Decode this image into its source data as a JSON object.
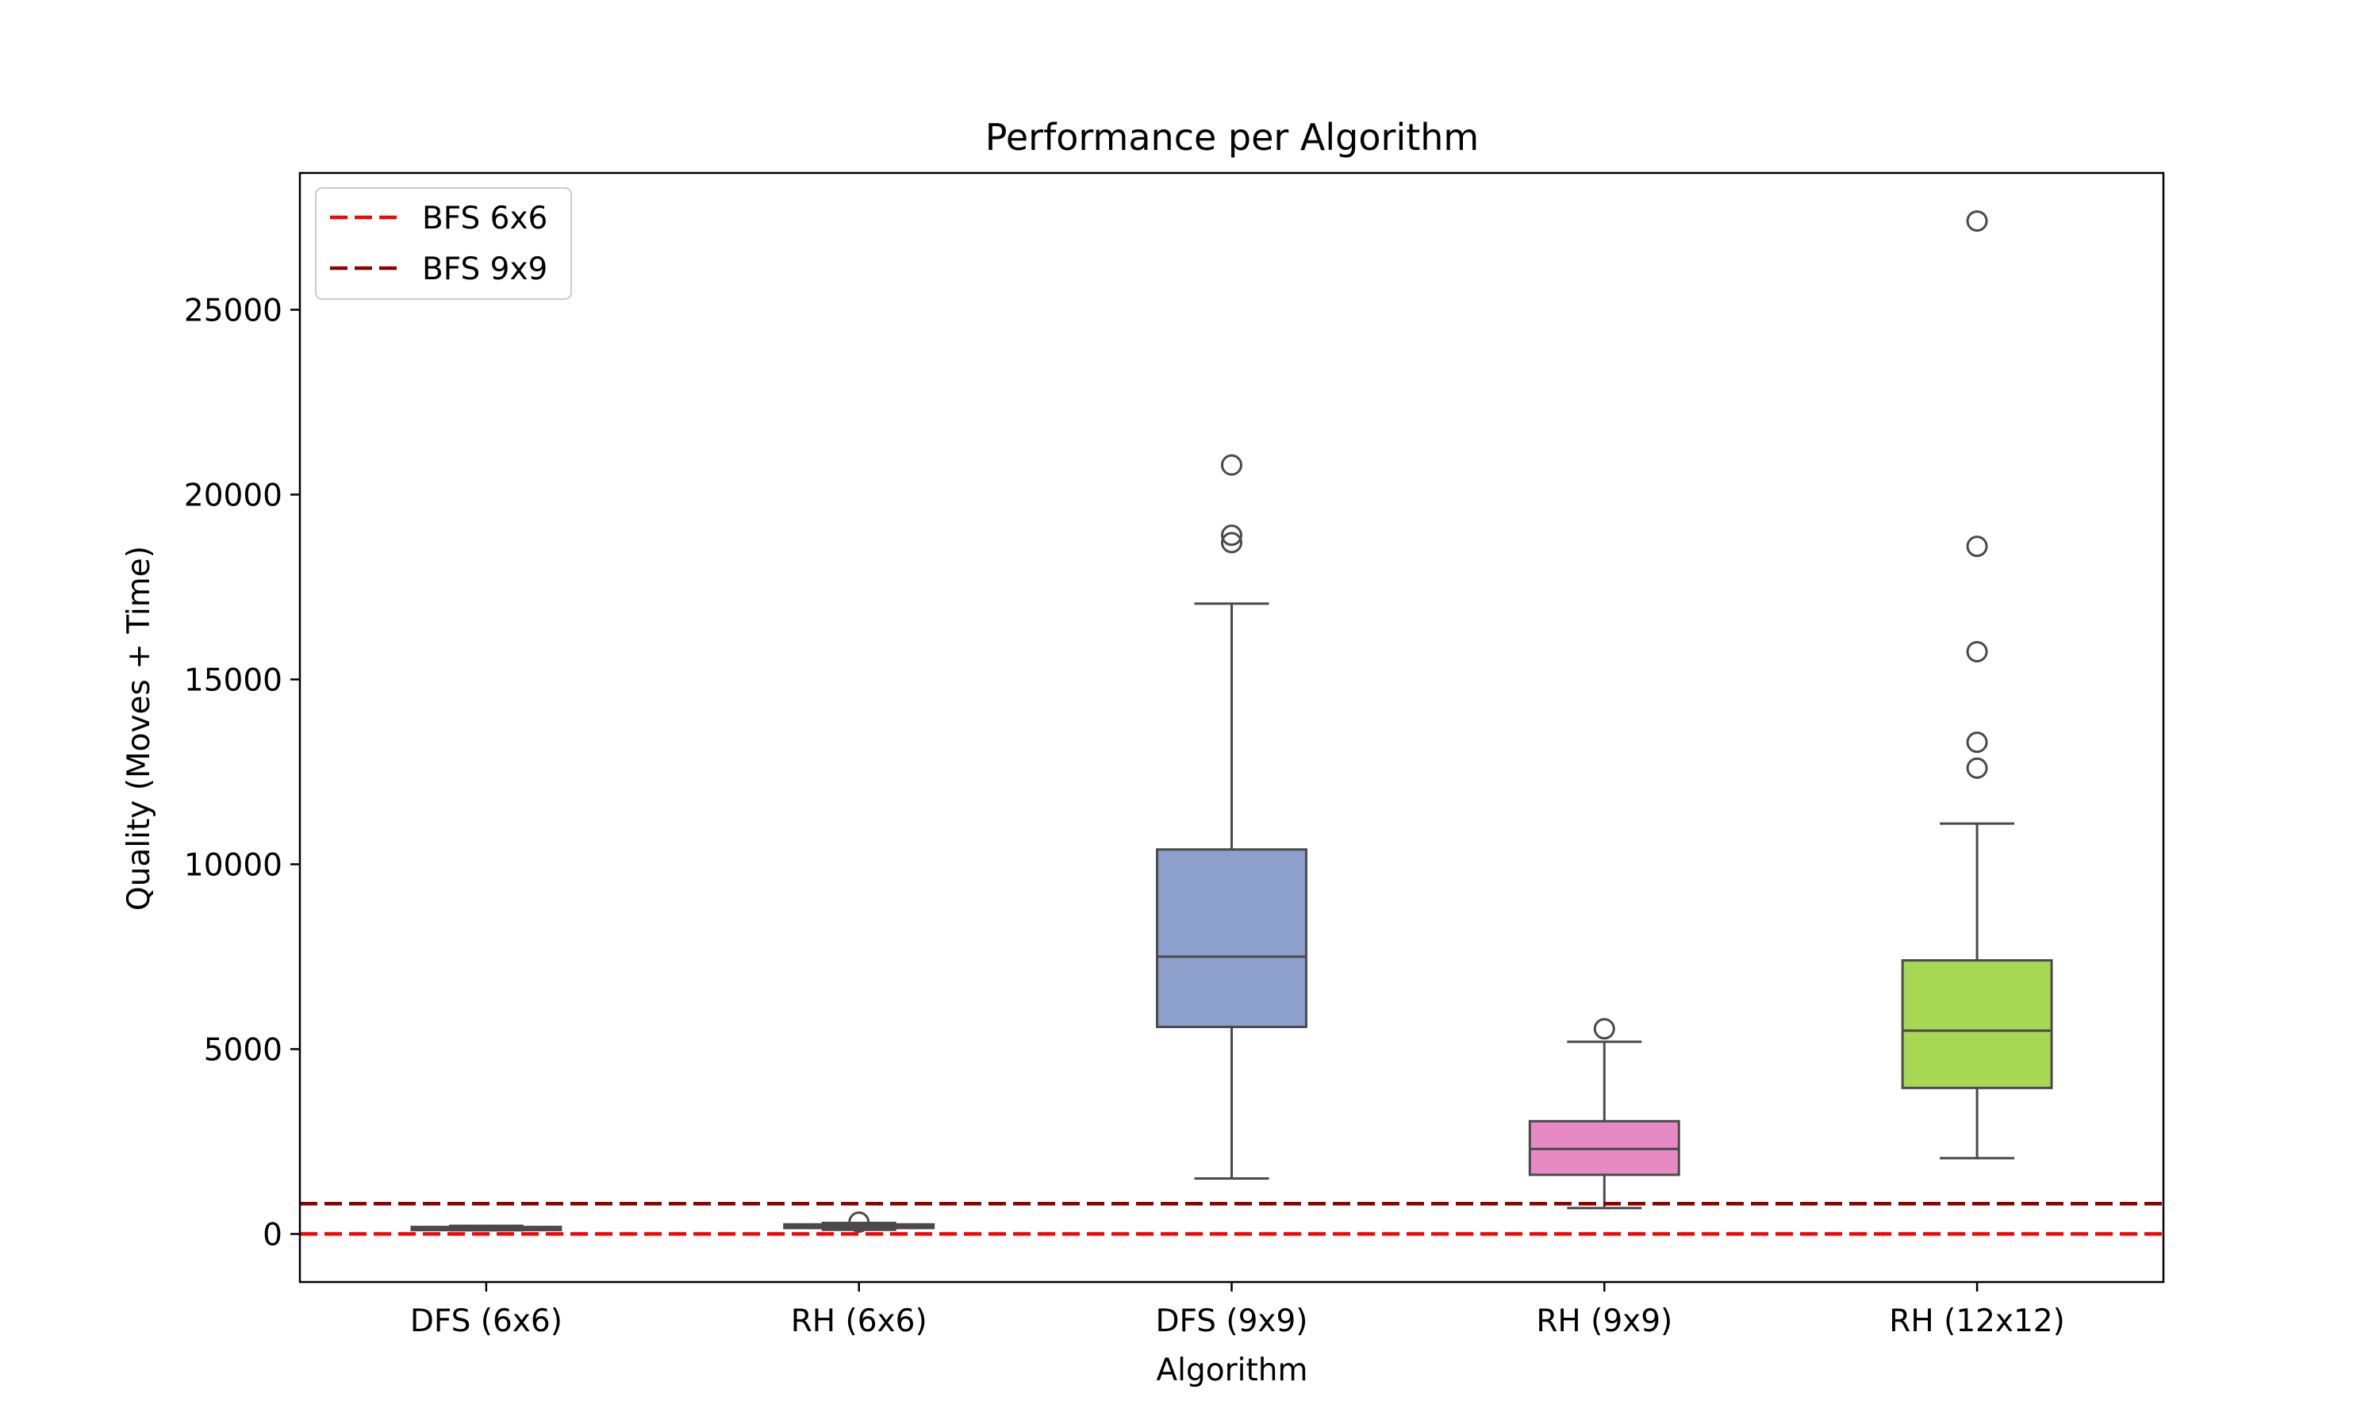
{
  "chart_data": {
    "type": "box",
    "title": "Performance per Algorithm",
    "xlabel": "Algorithm",
    "ylabel": "Quality (Moves + Time)",
    "ylim": [
      -1300,
      28700
    ],
    "yticks": [
      0,
      5000,
      10000,
      15000,
      20000,
      25000
    ],
    "ytick_labels": [
      "0",
      "5000",
      "10000",
      "15000",
      "20000",
      "25000"
    ],
    "grid": false,
    "legend_position": "top-left",
    "categories": [
      "DFS (6x6)",
      "RH (6x6)",
      "DFS (9x9)",
      "RH (9x9)",
      "RH (12x12)"
    ],
    "boxes": [
      {
        "category": "DFS (6x6)",
        "color": "#66c2a5",
        "whisker_low": 100,
        "q1": 130,
        "median": 155,
        "q3": 190,
        "whisker_high": 220,
        "outliers": []
      },
      {
        "category": "RH (6x6)",
        "color": "#fc8d62",
        "whisker_low": 110,
        "q1": 160,
        "median": 210,
        "q3": 260,
        "whisker_high": 300,
        "outliers": [
          320
        ]
      },
      {
        "category": "DFS (9x9)",
        "color": "#8da0cb",
        "whisker_low": 1500,
        "q1": 5600,
        "median": 7500,
        "q3": 10400,
        "whisker_high": 17050,
        "outliers": [
          18700,
          18900,
          20800
        ]
      },
      {
        "category": "RH (9x9)",
        "color": "#e78ac3",
        "whisker_low": 700,
        "q1": 1600,
        "median": 2300,
        "q3": 3050,
        "whisker_high": 5200,
        "outliers": [
          5550
        ]
      },
      {
        "category": "RH (12x12)",
        "color": "#a6d854",
        "whisker_low": 2050,
        "q1": 3950,
        "median": 5500,
        "q3": 7400,
        "whisker_high": 11100,
        "outliers": [
          12600,
          13300,
          15750,
          18600,
          27400
        ]
      }
    ],
    "reference_lines": [
      {
        "name": "BFS 6x6",
        "value": 0,
        "color": "#ff0000",
        "style": "dashed"
      },
      {
        "name": "BFS 9x9",
        "value": 820,
        "color": "#8b0000",
        "style": "dashed"
      }
    ]
  }
}
